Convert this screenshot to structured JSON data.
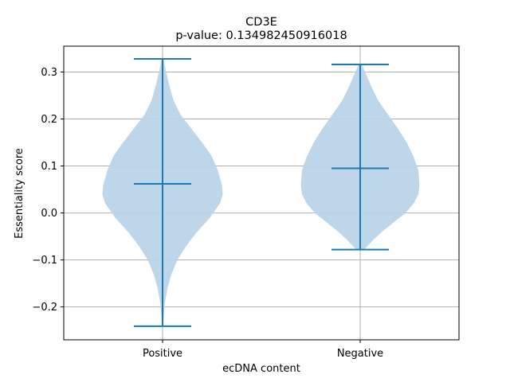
{
  "chart_data": {
    "type": "violin",
    "title": "CD3E",
    "subtitle": "p-value: 0.134982450916018",
    "xlabel": "ecDNA content",
    "ylabel": "Essentiality score",
    "categories": [
      "Positive",
      "Negative"
    ],
    "ylim": [
      -0.27,
      0.355
    ],
    "yticks": [
      -0.2,
      -0.1,
      0.0,
      0.1,
      0.2,
      0.3
    ],
    "ytick_labels": [
      "−0.2",
      "−0.1",
      "0.0",
      "0.1",
      "0.2",
      "0.3"
    ],
    "grid": true,
    "fill_color": "#b9d4e8",
    "line_color": "#1f77b4",
    "grid_color": "#b0b0b0",
    "violins": [
      {
        "category": "Positive",
        "min": -0.241,
        "max": 0.328,
        "median": 0.062,
        "profile": [
          [
            -0.241,
            0.004
          ],
          [
            -0.22,
            0.006
          ],
          [
            -0.19,
            0.012
          ],
          [
            -0.16,
            0.025
          ],
          [
            -0.13,
            0.045
          ],
          [
            -0.1,
            0.075
          ],
          [
            -0.07,
            0.12
          ],
          [
            -0.04,
            0.175
          ],
          [
            -0.01,
            0.24
          ],
          [
            0.02,
            0.29
          ],
          [
            0.04,
            0.305
          ],
          [
            0.06,
            0.3
          ],
          [
            0.09,
            0.28
          ],
          [
            0.12,
            0.25
          ],
          [
            0.15,
            0.2
          ],
          [
            0.18,
            0.145
          ],
          [
            0.21,
            0.09
          ],
          [
            0.24,
            0.055
          ],
          [
            0.27,
            0.035
          ],
          [
            0.3,
            0.018
          ],
          [
            0.328,
            0.005
          ]
        ]
      },
      {
        "category": "Negative",
        "min": -0.078,
        "max": 0.316,
        "median": 0.095,
        "profile": [
          [
            -0.078,
            0.02
          ],
          [
            -0.06,
            0.06
          ],
          [
            -0.04,
            0.11
          ],
          [
            -0.02,
            0.17
          ],
          [
            0.0,
            0.23
          ],
          [
            0.02,
            0.27
          ],
          [
            0.04,
            0.295
          ],
          [
            0.06,
            0.3
          ],
          [
            0.09,
            0.295
          ],
          [
            0.12,
            0.27
          ],
          [
            0.15,
            0.235
          ],
          [
            0.18,
            0.19
          ],
          [
            0.21,
            0.14
          ],
          [
            0.24,
            0.09
          ],
          [
            0.27,
            0.055
          ],
          [
            0.29,
            0.035
          ],
          [
            0.316,
            0.008
          ]
        ]
      }
    ]
  }
}
